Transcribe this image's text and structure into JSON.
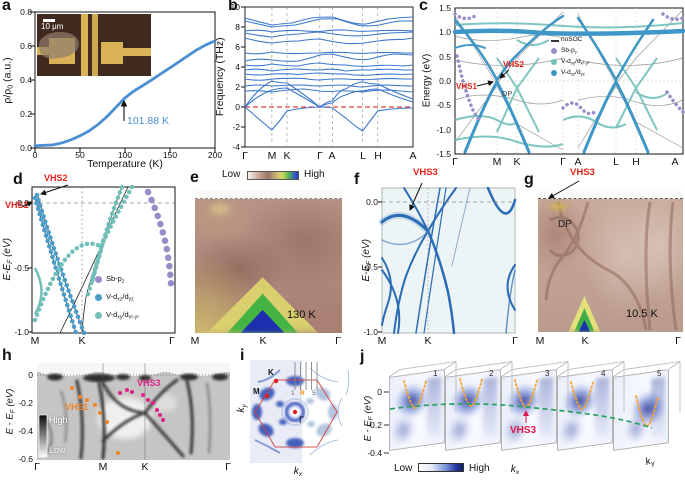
{
  "a": {
    "letter": "a",
    "ylabel": "ρ/ρ<sub>0</sub> (a.u.)",
    "xlabel": "Temperature (K)",
    "yticks": [
      "0.8",
      "0.6",
      "0.4",
      "0.2",
      "0.0"
    ],
    "xticks": [
      "0",
      "50",
      "100",
      "150",
      "200"
    ],
    "annotation": "101.88 K",
    "scalebar": "10 μm",
    "curve_color": "#4a8fd4"
  },
  "b": {
    "letter": "b",
    "ylabel": "Frequency (THz)",
    "yticks": [
      "10",
      "8",
      "6",
      "4",
      "2",
      "0",
      "-2",
      "-4"
    ],
    "xticks": [
      "Γ",
      "M",
      "K",
      "Γ",
      "A",
      "L",
      "H",
      "A"
    ]
  },
  "c": {
    "letter": "c",
    "ylabel": "Energy (eV)",
    "yticks": [
      "1.5",
      "1.0",
      "0.5",
      "0.0",
      "-0.5",
      "-1.0",
      "-1.5"
    ],
    "xticks": [
      "Γ",
      "M",
      "K",
      "Γ",
      "A",
      "L",
      "H",
      "A"
    ],
    "legend": [
      "noSOC",
      "Sb-p<sub>z</sub>",
      "V-d<sub>xy</sub>/d<sub>x²-y²</sub>",
      "V-d<sub>xz</sub>/d<sub>yz</sub>"
    ],
    "vhs1": "VHS1",
    "vhs2": "VHS2",
    "dp": "DP"
  },
  "d": {
    "letter": "d",
    "ylabel": "E-E<sub>F</sub> (eV)",
    "yticks": [
      "0.0",
      "-0.5",
      "-1.0"
    ],
    "xticks": [
      "M",
      "K",
      "Γ"
    ],
    "legend": [
      "Sb-p<sub>z</sub>",
      "V-d<sub>xz</sub>/d<sub>yz</sub>",
      "V-d<sub>xy</sub>/d<sub>x²-y²</sub>"
    ],
    "vhs1": "VHS1",
    "vhs2": "VHS2"
  },
  "e": {
    "letter": "e",
    "cbar_low": "Low",
    "cbar_high": "High",
    "temperature": "130 K",
    "xticks": [
      "M",
      "K",
      "Γ"
    ]
  },
  "f": {
    "letter": "f",
    "ylabel": "E-E<sub>F</sub> (eV)",
    "yticks": [
      "0.0",
      "-0.5",
      "-1.0"
    ],
    "xticks": [
      "M",
      "K",
      "Γ"
    ],
    "vhs3": "VHS3"
  },
  "g": {
    "letter": "g",
    "vhs3": "VHS3",
    "dp": "DP",
    "temperature": "10.5 K",
    "xticks": [
      "M",
      "K",
      "Γ"
    ]
  },
  "h": {
    "letter": "h",
    "ylabel": "E - E<sub>F</sub> (eV)",
    "yticks": [
      "0",
      "-0.2",
      "-0.4",
      "-0.6"
    ],
    "xticks": [
      "Γ",
      "M",
      "K",
      "Γ"
    ],
    "vhs1": "VHS1",
    "vhs3": "VHS3",
    "cbar_high": "High",
    "cbar_low": "Low"
  },
  "i": {
    "letter": "i",
    "kx": "k<sub>x</sub>",
    "ky": "k<sub>y</sub>",
    "point_k": "K",
    "point_m": "M",
    "point_g": "Γ",
    "cut_first": "1",
    "cut_r": "R",
    "cut_last": "5"
  },
  "j": {
    "letter": "j",
    "ylabel": "E - E<sub>F</sub> (eV)",
    "yticks": [
      "0",
      "-0.2",
      "-0.4"
    ],
    "cut_numbers": [
      "1",
      "2",
      "3",
      "4",
      "5"
    ],
    "vhs3": "VHS3",
    "cbar_low": "Low",
    "cbar_high": "High",
    "kx": "k<sub>x</sub>",
    "ky": "k<sub>y</sub>"
  }
}
